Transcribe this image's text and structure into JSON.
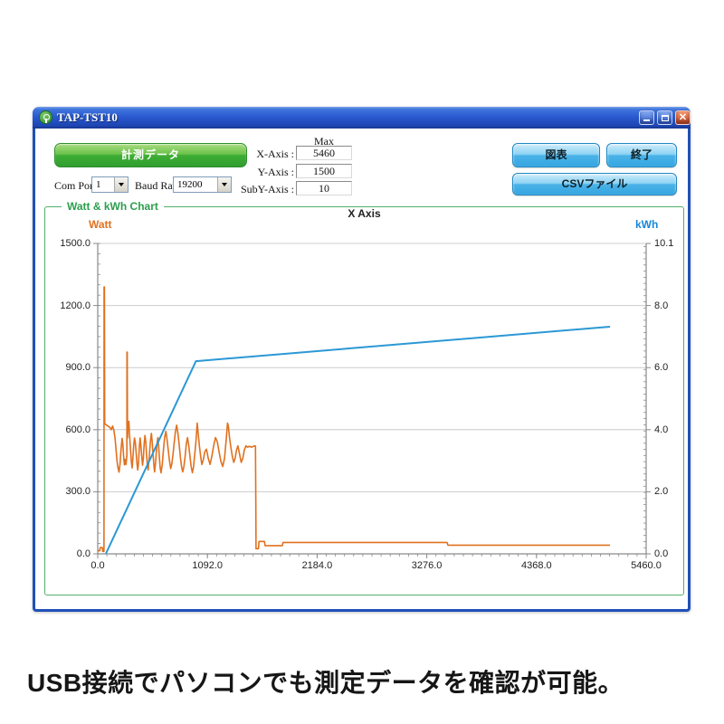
{
  "window": {
    "title": "TAP-TST10",
    "controls": {
      "minimize": "minimize",
      "maximize": "maximize",
      "close": "✕"
    },
    "toolbar": {
      "measure_button": "計測データ",
      "com_port_label": "Com Port",
      "com_port_value": "1",
      "baud_rate_label": "Baud Rate",
      "baud_rate_value": "19200",
      "max_header": "Max",
      "axis_fields": [
        {
          "label": "X-Axis :",
          "value": "5460"
        },
        {
          "label": "Y-Axis :",
          "value": "1500"
        },
        {
          "label": "SubY-Axis :",
          "value": "10"
        }
      ],
      "chart_button": "図表",
      "exit_button": "終了",
      "csv_button": "CSVファイル"
    }
  },
  "caption": "USB接続でパソコンでも測定データを確認が可能。",
  "chart_data": {
    "type": "line",
    "title": "Watt & kWh Chart",
    "grid": true,
    "legend_position": "none",
    "colors": {
      "grid": "#cccccc",
      "axis": "#8a8a8a",
      "watt": "#e0711f",
      "kwh": "#2b98d5"
    },
    "left_axis": {
      "label": "Watt",
      "range": [
        0,
        1500
      ],
      "ticks": [
        "1500.0",
        "1200.0",
        "900.0",
        "600.0",
        "300.0",
        "0.0"
      ],
      "minor_step": 50,
      "color": "#e0711f"
    },
    "right_axis": {
      "label": "kWh",
      "range": [
        0,
        10.1
      ],
      "ticks": [
        "10.1",
        "8.0",
        "6.0",
        "4.0",
        "2.0",
        "0.0"
      ],
      "minor_step": 0.2,
      "color": "#1787d8"
    },
    "x_axis": {
      "label": "X Axis",
      "range": [
        0,
        5460
      ],
      "ticks": [
        "0.0",
        "1092.0",
        "2184.0",
        "3276.0",
        "4368.0",
        "5460.0"
      ],
      "minor_step": 91
    },
    "series": [
      {
        "name": "Watt",
        "axis": "left",
        "color": "#e0711f",
        "width": 1.6,
        "points": [
          [
            0,
            15
          ],
          [
            20,
            15
          ],
          [
            24,
            30
          ],
          [
            46,
            30
          ],
          [
            50,
            12
          ],
          [
            62,
            12
          ],
          [
            63,
            1290
          ],
          [
            67,
            1290
          ],
          [
            69,
            630
          ],
          [
            80,
            625
          ],
          [
            100,
            618
          ],
          [
            120,
            612
          ],
          [
            135,
            600
          ],
          [
            148,
            618
          ],
          [
            160,
            598
          ],
          [
            172,
            560
          ],
          [
            182,
            505
          ],
          [
            192,
            450
          ],
          [
            202,
            415
          ],
          [
            212,
            395
          ],
          [
            222,
            432
          ],
          [
            232,
            502
          ],
          [
            242,
            558
          ],
          [
            250,
            532
          ],
          [
            258,
            472
          ],
          [
            266,
            430
          ],
          [
            274,
            456
          ],
          [
            282,
            432
          ],
          [
            288,
            470
          ],
          [
            290,
            470
          ],
          [
            291,
            975
          ],
          [
            294,
            975
          ],
          [
            296,
            560
          ],
          [
            302,
            618
          ],
          [
            310,
            640
          ],
          [
            318,
            565
          ],
          [
            326,
            505
          ],
          [
            334,
            448
          ],
          [
            342,
            415
          ],
          [
            350,
            460
          ],
          [
            358,
            522
          ],
          [
            366,
            560
          ],
          [
            374,
            540
          ],
          [
            382,
            492
          ],
          [
            390,
            440
          ],
          [
            398,
            405
          ],
          [
            406,
            442
          ],
          [
            414,
            512
          ],
          [
            422,
            560
          ],
          [
            430,
            522
          ],
          [
            438,
            472
          ],
          [
            446,
            428
          ],
          [
            454,
            462
          ],
          [
            462,
            532
          ],
          [
            470,
            572
          ],
          [
            478,
            540
          ],
          [
            486,
            482
          ],
          [
            494,
            432
          ],
          [
            502,
            405
          ],
          [
            510,
            452
          ],
          [
            518,
            502
          ],
          [
            526,
            552
          ],
          [
            534,
            582
          ],
          [
            542,
            540
          ],
          [
            550,
            490
          ],
          [
            558,
            436
          ],
          [
            566,
            396
          ],
          [
            574,
            432
          ],
          [
            582,
            482
          ],
          [
            590,
            532
          ],
          [
            598,
            562
          ],
          [
            606,
            520
          ],
          [
            614,
            466
          ],
          [
            622,
            416
          ],
          [
            630,
            392
          ],
          [
            642,
            432
          ],
          [
            654,
            502
          ],
          [
            666,
            562
          ],
          [
            678,
            592
          ],
          [
            690,
            552
          ],
          [
            702,
            502
          ],
          [
            714,
            452
          ],
          [
            726,
            412
          ],
          [
            738,
            436
          ],
          [
            750,
            482
          ],
          [
            762,
            542
          ],
          [
            774,
            592
          ],
          [
            786,
            622
          ],
          [
            798,
            582
          ],
          [
            810,
            532
          ],
          [
            822,
            472
          ],
          [
            834,
            422
          ],
          [
            846,
            396
          ],
          [
            858,
            422
          ],
          [
            870,
            472
          ],
          [
            882,
            532
          ],
          [
            894,
            562
          ],
          [
            906,
            522
          ],
          [
            918,
            472
          ],
          [
            930,
            422
          ],
          [
            942,
            392
          ],
          [
            954,
            422
          ],
          [
            966,
            482
          ],
          [
            978,
            542
          ],
          [
            990,
            632
          ],
          [
            1000,
            582
          ],
          [
            1012,
            522
          ],
          [
            1024,
            472
          ],
          [
            1036,
            432
          ],
          [
            1050,
            452
          ],
          [
            1065,
            492
          ],
          [
            1082,
            506
          ],
          [
            1100,
            462
          ],
          [
            1118,
            432
          ],
          [
            1136,
            472
          ],
          [
            1154,
            522
          ],
          [
            1172,
            562
          ],
          [
            1190,
            542
          ],
          [
            1208,
            492
          ],
          [
            1226,
            446
          ],
          [
            1244,
            422
          ],
          [
            1262,
            462
          ],
          [
            1280,
            560
          ],
          [
            1292,
            632
          ],
          [
            1300,
            618
          ],
          [
            1312,
            562
          ],
          [
            1326,
            512
          ],
          [
            1340,
            472
          ],
          [
            1354,
            442
          ],
          [
            1368,
            462
          ],
          [
            1382,
            502
          ],
          [
            1396,
            522
          ],
          [
            1412,
            482
          ],
          [
            1428,
            442
          ],
          [
            1444,
            462
          ],
          [
            1460,
            502
          ],
          [
            1476,
            522
          ],
          [
            1492,
            515
          ],
          [
            1510,
            520
          ],
          [
            1530,
            515
          ],
          [
            1550,
            520
          ],
          [
            1566,
            522
          ],
          [
            1570,
            520
          ],
          [
            1572,
            370
          ],
          [
            1574,
            230
          ],
          [
            1576,
            25
          ],
          [
            1600,
            25
          ],
          [
            1606,
            60
          ],
          [
            1660,
            60
          ],
          [
            1666,
            40
          ],
          [
            1838,
            40
          ],
          [
            1844,
            55
          ],
          [
            3478,
            55
          ],
          [
            3486,
            42
          ],
          [
            5100,
            42
          ]
        ]
      },
      {
        "name": "kWh",
        "axis": "right",
        "color": "#2b98d5",
        "width": 2,
        "points": [
          [
            80,
            0
          ],
          [
            978,
            6.27
          ],
          [
            5100,
            7.39
          ]
        ]
      }
    ]
  }
}
